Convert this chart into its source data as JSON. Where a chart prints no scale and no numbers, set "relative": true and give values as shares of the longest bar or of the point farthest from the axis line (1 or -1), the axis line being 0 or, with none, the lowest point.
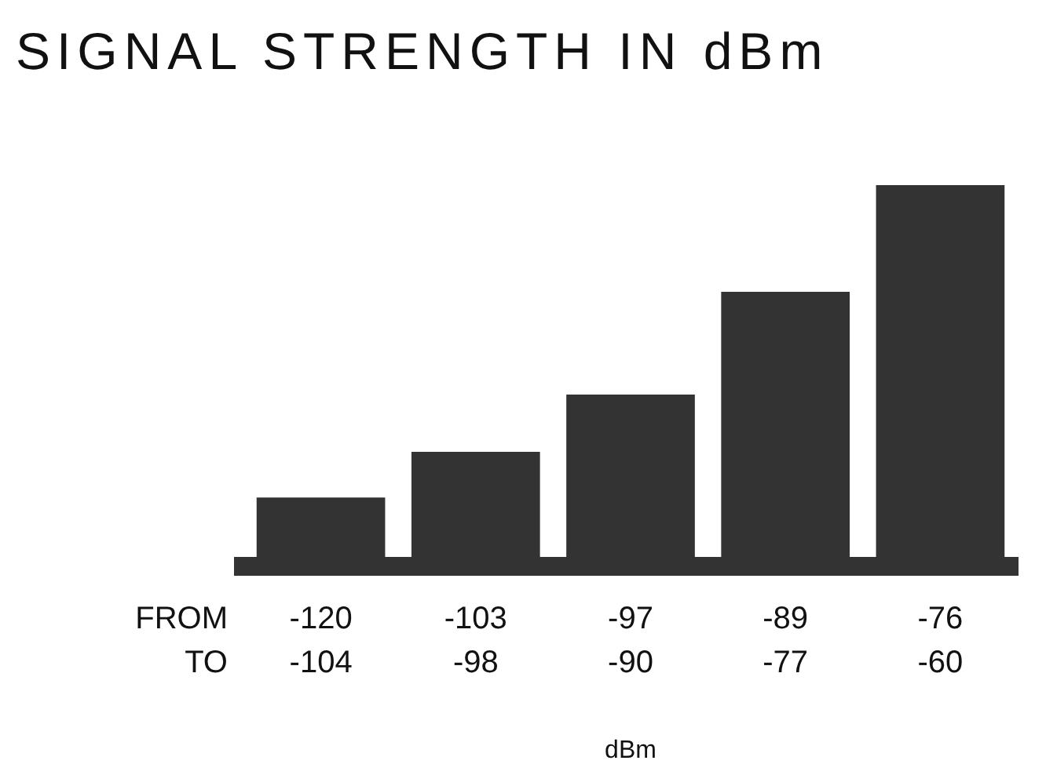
{
  "chart_data": {
    "type": "bar",
    "title": "SIGNAL STRENGTH IN dBm",
    "xlabel": "dBm",
    "categories": [
      "-120\n-104",
      "-103\n-98",
      "-97\n-90",
      "-89\n-77",
      "-76\n-60"
    ],
    "values": [
      0.18,
      0.3,
      0.45,
      0.72,
      1
    ],
    "color": "#333333",
    "relative": true,
    "annotations": [
      "FROM",
      "TO"
    ]
  }
}
